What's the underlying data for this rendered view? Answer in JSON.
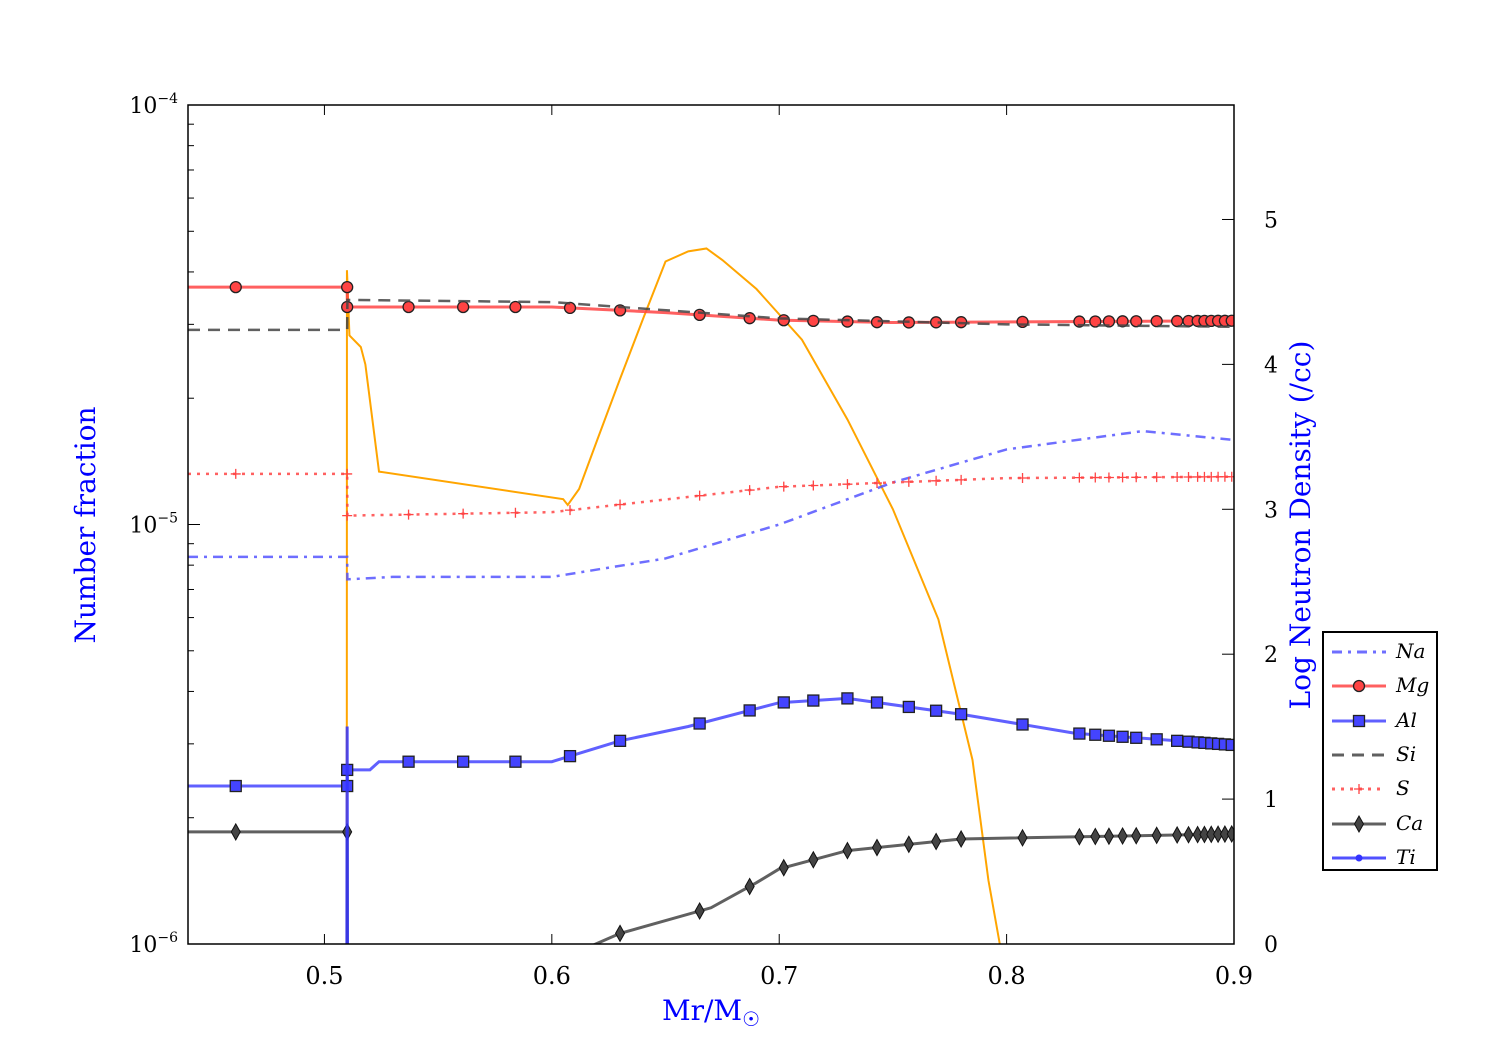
{
  "chart_data": {
    "type": "line",
    "xlabel": "Mr/M",
    "xlabel_symbol": "☉",
    "ylabel": "Number fraction",
    "ylabel_right": "Log Neutron Density (/cc)",
    "xlim": [
      0.44,
      0.9
    ],
    "ylim": [
      1e-06,
      0.0001
    ],
    "yscale": "log",
    "ylim_right": [
      0,
      5.79
    ],
    "x_ticks": [
      "0.5",
      "0.6",
      "0.7",
      "0.8",
      "0.9"
    ],
    "x_tick_values": [
      0.5,
      0.6,
      0.7,
      0.8,
      0.9
    ],
    "y_ticks": [
      {
        "base": "10",
        "exp": "−4",
        "value": 0.0001
      },
      {
        "base": "10",
        "exp": "−5",
        "value": 1e-05
      },
      {
        "base": "10",
        "exp": "−6",
        "value": 1e-06
      }
    ],
    "y_right_ticks": [
      "0",
      "1",
      "2",
      "3",
      "4",
      "5"
    ],
    "legend_position": "right",
    "marker_x": [
      0.461,
      0.51,
      0.537,
      0.561,
      0.584,
      0.608,
      0.63,
      0.665,
      0.687,
      0.702,
      0.715,
      0.73,
      0.743,
      0.757,
      0.769,
      0.78,
      0.807,
      0.832,
      0.839,
      0.845,
      0.851,
      0.857,
      0.866,
      0.875,
      0.88,
      0.884,
      0.887,
      0.89,
      0.893,
      0.896,
      0.899
    ],
    "series": [
      {
        "name": "Na",
        "color": "#5555ff",
        "style": "dashdot",
        "marker": "none",
        "points": [
          [
            0.44,
            8.37e-06
          ],
          [
            0.51,
            8.37e-06
          ],
          [
            0.5101,
            7.4e-06
          ],
          [
            0.53,
            7.5e-06
          ],
          [
            0.6,
            7.5e-06
          ],
          [
            0.65,
            8.3e-06
          ],
          [
            0.7,
            1e-05
          ],
          [
            0.75,
            1.26e-05
          ],
          [
            0.8,
            1.51e-05
          ],
          [
            0.86,
            1.67e-05
          ],
          [
            0.9,
            1.59e-05
          ]
        ]
      },
      {
        "name": "Mg",
        "color": "#ff4444",
        "style": "solid",
        "marker": "circle",
        "points": [
          [
            0.44,
            3.68e-05
          ],
          [
            0.51,
            3.68e-05
          ],
          [
            0.5101,
            3.3e-05
          ],
          [
            0.6,
            3.3e-05
          ],
          [
            0.65,
            3.2e-05
          ],
          [
            0.7,
            3.07e-05
          ],
          [
            0.75,
            3.03e-05
          ],
          [
            0.9,
            3.06e-05
          ]
        ]
      },
      {
        "name": "Al",
        "color": "#4444ff",
        "style": "solid",
        "marker": "square",
        "points": [
          [
            0.44,
            2.38e-06
          ],
          [
            0.51,
            2.38e-06
          ],
          [
            0.5101,
            2.6e-06
          ],
          [
            0.52,
            2.6e-06
          ],
          [
            0.524,
            2.72e-06
          ],
          [
            0.6,
            2.72e-06
          ],
          [
            0.63,
            3.05e-06
          ],
          [
            0.66,
            3.3e-06
          ],
          [
            0.7,
            3.76e-06
          ],
          [
            0.73,
            3.85e-06
          ],
          [
            0.78,
            3.53e-06
          ],
          [
            0.83,
            3.18e-06
          ],
          [
            0.9,
            2.98e-06
          ]
        ]
      },
      {
        "name": "Si",
        "color": "#444444",
        "style": "dashed",
        "marker": "none",
        "points": [
          [
            0.44,
            2.91e-05
          ],
          [
            0.51,
            2.91e-05
          ],
          [
            0.5101,
            3.43e-05
          ],
          [
            0.6,
            3.39e-05
          ],
          [
            0.7,
            3.1e-05
          ],
          [
            0.8,
            3e-05
          ],
          [
            0.9,
            2.96e-05
          ]
        ]
      },
      {
        "name": "S",
        "color": "#ff4444",
        "style": "dotted",
        "marker": "plus",
        "points": [
          [
            0.44,
            1.32e-05
          ],
          [
            0.51,
            1.32e-05
          ],
          [
            0.5101,
            1.05e-05
          ],
          [
            0.6,
            1.07e-05
          ],
          [
            0.7,
            1.23e-05
          ],
          [
            0.8,
            1.29e-05
          ],
          [
            0.9,
            1.3e-05
          ]
        ]
      },
      {
        "name": "Ca",
        "color": "#444444",
        "style": "solid",
        "marker": "diamond",
        "points": [
          [
            0.44,
            1.85e-06
          ],
          [
            0.51,
            1.85e-06
          ],
          [
            0.5101,
            5e-07
          ],
          [
            0.6,
            9e-07
          ],
          [
            0.63,
            1.06e-06
          ],
          [
            0.67,
            1.22e-06
          ],
          [
            0.69,
            1.4e-06
          ],
          [
            0.7,
            1.51e-06
          ],
          [
            0.73,
            1.67e-06
          ],
          [
            0.78,
            1.78e-06
          ],
          [
            0.9,
            1.83e-06
          ]
        ]
      },
      {
        "name": "Ti",
        "color": "#3333ff",
        "style": "solid",
        "marker": "dot",
        "points": [
          [
            0.5098,
            5e-07
          ],
          [
            0.51,
            3.3e-06
          ],
          [
            0.5102,
            5e-07
          ]
        ]
      }
    ],
    "neutron_density": {
      "name": "Log Neutron Density",
      "color": "#ffa500",
      "axis": "right",
      "points": [
        [
          0.5098,
          -1
        ],
        [
          0.5099,
          4.65
        ],
        [
          0.511,
          4.2
        ],
        [
          0.516,
          4.12
        ],
        [
          0.518,
          4.0
        ],
        [
          0.524,
          3.26
        ],
        [
          0.605,
          3.07
        ],
        [
          0.607,
          3.03
        ],
        [
          0.612,
          3.14
        ],
        [
          0.62,
          3.48
        ],
        [
          0.63,
          3.9
        ],
        [
          0.64,
          4.31
        ],
        [
          0.65,
          4.71
        ],
        [
          0.66,
          4.78
        ],
        [
          0.668,
          4.8
        ],
        [
          0.675,
          4.72
        ],
        [
          0.69,
          4.52
        ],
        [
          0.71,
          4.17
        ],
        [
          0.73,
          3.62
        ],
        [
          0.75,
          3.0
        ],
        [
          0.77,
          2.24
        ],
        [
          0.785,
          1.27
        ],
        [
          0.792,
          0.44
        ],
        [
          0.797,
          0
        ]
      ]
    }
  }
}
